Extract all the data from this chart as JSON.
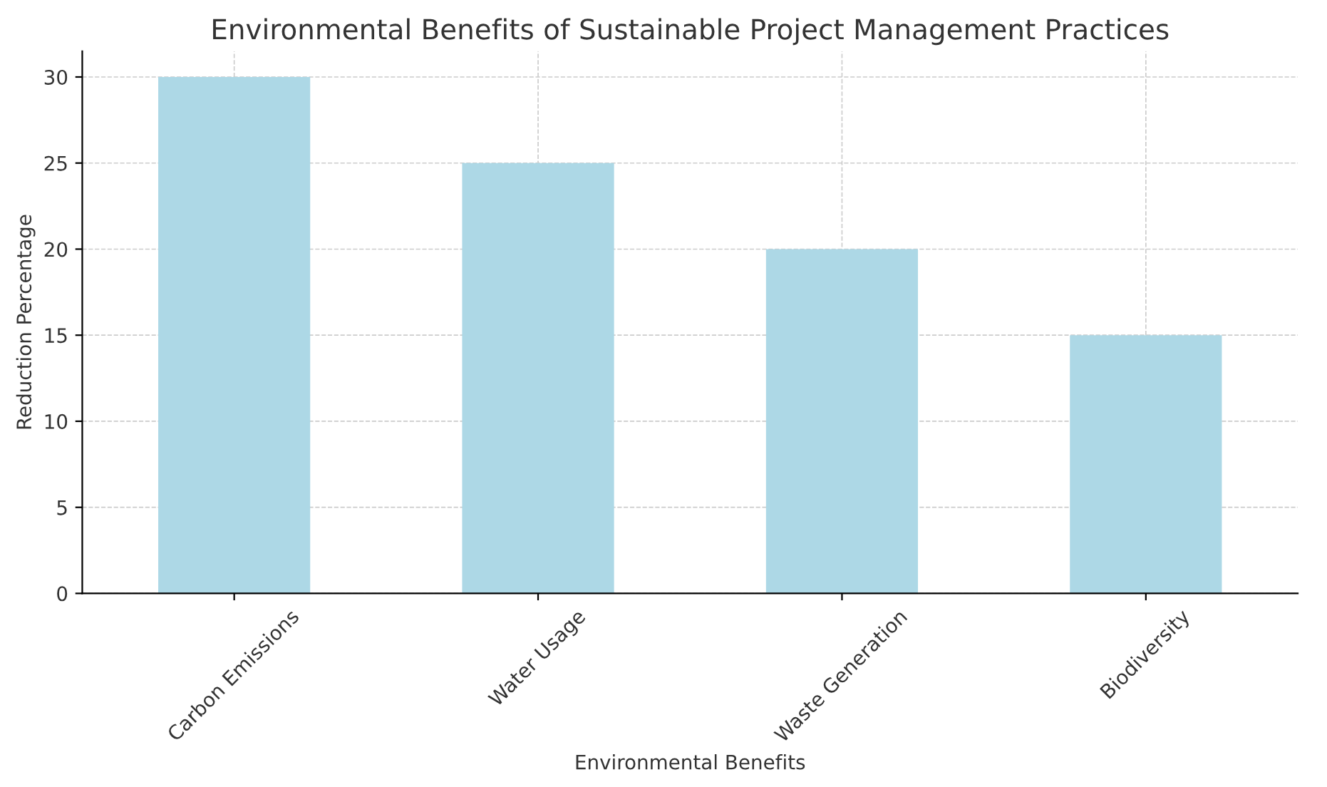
{
  "chart_data": {
    "type": "bar",
    "title": "Environmental Benefits of Sustainable Project Management Practices",
    "xlabel": "Environmental Benefits",
    "ylabel": "Reduction Percentage",
    "categories": [
      "Carbon Emissions",
      "Water Usage",
      "Waste Generation",
      "Biodiversity"
    ],
    "values": [
      30,
      25,
      20,
      15
    ],
    "color": "#add8e6",
    "ylim": [
      0,
      31.5
    ],
    "yticks": [
      0,
      5,
      10,
      15,
      20,
      25,
      30
    ],
    "grid": true
  }
}
